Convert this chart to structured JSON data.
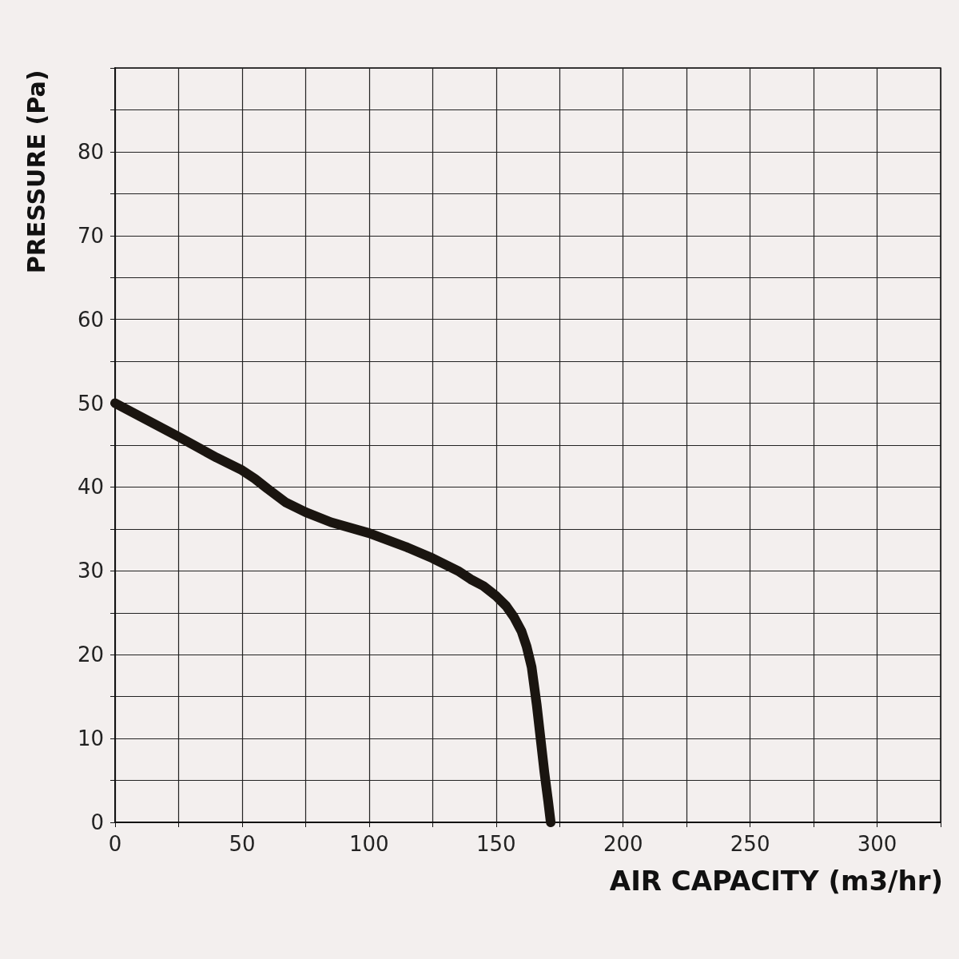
{
  "chart_data": {
    "type": "line",
    "xlabel": "AIR CAPACITY (m3/hr)",
    "ylabel": "PRESSURE (Pa)",
    "xlim": [
      0,
      325
    ],
    "ylim": [
      0,
      90
    ],
    "xticks": [
      0,
      {
        "value": 25,
        "label": null
      },
      50,
      {
        "value": 75,
        "label": null
      },
      100,
      {
        "value": 125,
        "label": null
      },
      150,
      {
        "value": 175,
        "label": null
      },
      200,
      {
        "value": 225,
        "label": null
      },
      250,
      {
        "value": 275,
        "label": null
      },
      300,
      {
        "value": 325,
        "label": null
      }
    ],
    "yticks": [
      0,
      {
        "value": 5,
        "label": null
      },
      10,
      {
        "value": 15,
        "label": null
      },
      20,
      {
        "value": 25,
        "label": null
      },
      30,
      {
        "value": 35,
        "label": null
      },
      40,
      {
        "value": 45,
        "label": null
      },
      50,
      {
        "value": 55,
        "label": null
      },
      60,
      {
        "value": 65,
        "label": null
      },
      70,
      {
        "value": 75,
        "label": null
      },
      80,
      {
        "value": 85,
        "label": null
      },
      {
        "value": 90,
        "label": null
      }
    ],
    "grid": true,
    "line_style": "solid",
    "series": [
      {
        "color": "#1a1510",
        "x": [
          0,
          25,
          40,
          50,
          55,
          60,
          67,
          75,
          85,
          100,
          115,
          125,
          135,
          140,
          145,
          150,
          154,
          157,
          160,
          162,
          164,
          166,
          167.5,
          169,
          170.5,
          171.5
        ],
        "values": [
          50,
          46,
          43.5,
          42,
          41,
          39.8,
          38.2,
          37,
          35.8,
          34.5,
          32.8,
          31.5,
          30,
          29,
          28.2,
          27,
          25.8,
          24.5,
          22.8,
          21,
          18.5,
          14,
          10,
          6,
          2.5,
          0
        ]
      }
    ]
  }
}
